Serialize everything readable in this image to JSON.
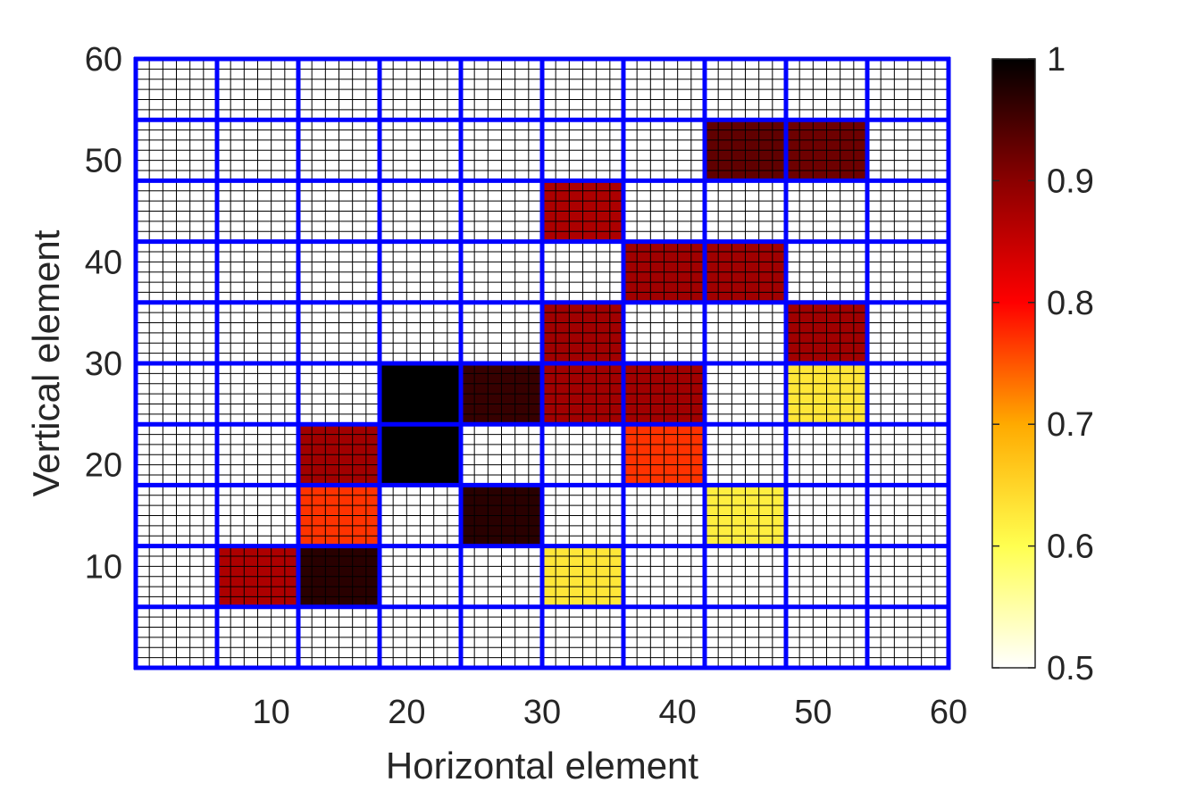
{
  "chart_data": {
    "type": "heatmap",
    "title": "",
    "xlabel": "Horizontal element",
    "ylabel": "Vertical element",
    "xlim": [
      0,
      60
    ],
    "ylim": [
      0,
      60
    ],
    "x_ticks": [
      10,
      20,
      30,
      40,
      50,
      60
    ],
    "y_ticks": [
      10,
      20,
      30,
      40,
      50,
      60
    ],
    "fine_grid_step": 1,
    "block_size": 6,
    "colormap": "hot (reversed)",
    "colorbar": {
      "range": [
        0.5,
        1
      ],
      "ticks": [
        0.5,
        0.6,
        0.7,
        0.8,
        0.9,
        1
      ],
      "tick_labels": [
        "0.5",
        "0.6",
        "0.7",
        "0.8",
        "0.9",
        "1"
      ]
    },
    "colors": {
      "fine_grid": "#000000",
      "block_grid": "#0000ff",
      "background": "#ffffff"
    },
    "blocks": [
      {
        "x": [
          6,
          12
        ],
        "y": [
          6,
          12
        ],
        "value": 0.87
      },
      {
        "x": [
          12,
          18
        ],
        "y": [
          6,
          12
        ],
        "value": 0.97
      },
      {
        "x": [
          30,
          36
        ],
        "y": [
          6,
          12
        ],
        "value": 0.63
      },
      {
        "x": [
          12,
          18
        ],
        "y": [
          12,
          18
        ],
        "value": 0.77
      },
      {
        "x": [
          24,
          30
        ],
        "y": [
          12,
          18
        ],
        "value": 0.97
      },
      {
        "x": [
          42,
          48
        ],
        "y": [
          12,
          18
        ],
        "value": 0.62
      },
      {
        "x": [
          12,
          18
        ],
        "y": [
          18,
          24
        ],
        "value": 0.88
      },
      {
        "x": [
          18,
          24
        ],
        "y": [
          18,
          24
        ],
        "value": 1.0
      },
      {
        "x": [
          36,
          42
        ],
        "y": [
          18,
          24
        ],
        "value": 0.77
      },
      {
        "x": [
          18,
          24
        ],
        "y": [
          24,
          30
        ],
        "value": 1.0
      },
      {
        "x": [
          24,
          30
        ],
        "y": [
          24,
          30
        ],
        "value": 0.96
      },
      {
        "x": [
          30,
          36
        ],
        "y": [
          24,
          30
        ],
        "value": 0.88
      },
      {
        "x": [
          36,
          42
        ],
        "y": [
          24,
          30
        ],
        "value": 0.88
      },
      {
        "x": [
          48,
          54
        ],
        "y": [
          24,
          30
        ],
        "value": 0.63
      },
      {
        "x": [
          30,
          36
        ],
        "y": [
          30,
          36
        ],
        "value": 0.88
      },
      {
        "x": [
          48,
          54
        ],
        "y": [
          30,
          36
        ],
        "value": 0.88
      },
      {
        "x": [
          36,
          42
        ],
        "y": [
          36,
          42
        ],
        "value": 0.88
      },
      {
        "x": [
          42,
          48
        ],
        "y": [
          36,
          42
        ],
        "value": 0.88
      },
      {
        "x": [
          30,
          36
        ],
        "y": [
          42,
          48
        ],
        "value": 0.87
      },
      {
        "x": [
          42,
          48
        ],
        "y": [
          48,
          54
        ],
        "value": 0.93
      },
      {
        "x": [
          48,
          54
        ],
        "y": [
          48,
          54
        ],
        "value": 0.92
      }
    ]
  }
}
